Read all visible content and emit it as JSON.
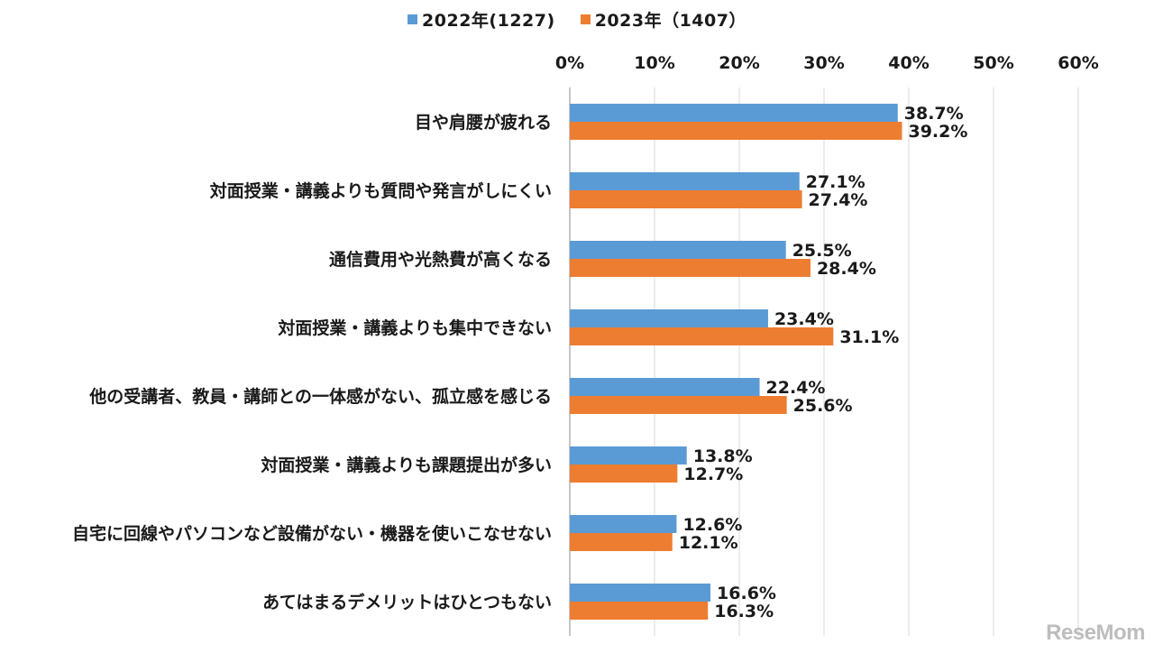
{
  "chart_data": {
    "type": "bar",
    "orientation": "horizontal",
    "categories": [
      "目や肩腰が疲れる",
      "対面授業・講義よりも質問や発言がしにくい",
      "通信費用や光熱費が高くなる",
      "対面授業・講義よりも集中できない",
      "他の受講者、教員・講師との一体感がない、孤立感を感じる",
      "対面授業・講義よりも課題提出が多い",
      "自宅に回線やパソコンなど設備がない・機器を使いこなせない",
      "あてはまるデメリットはひとつもない"
    ],
    "series": [
      {
        "name": "2022年(1227)",
        "color": "#5b9bd5",
        "values": [
          38.7,
          27.1,
          25.5,
          23.4,
          22.4,
          13.8,
          12.6,
          16.6
        ]
      },
      {
        "name": "2023年（1407）",
        "color": "#ed7d31",
        "values": [
          39.2,
          27.4,
          28.4,
          31.1,
          25.6,
          12.7,
          12.1,
          16.3
        ]
      }
    ],
    "xlim": [
      0,
      60
    ],
    "xticks": [
      0,
      10,
      20,
      30,
      40,
      50,
      60
    ],
    "tick_suffix": "%",
    "axis_position": "top",
    "grid": true,
    "legend_position": "top-center"
  },
  "watermark": "ReseMom"
}
